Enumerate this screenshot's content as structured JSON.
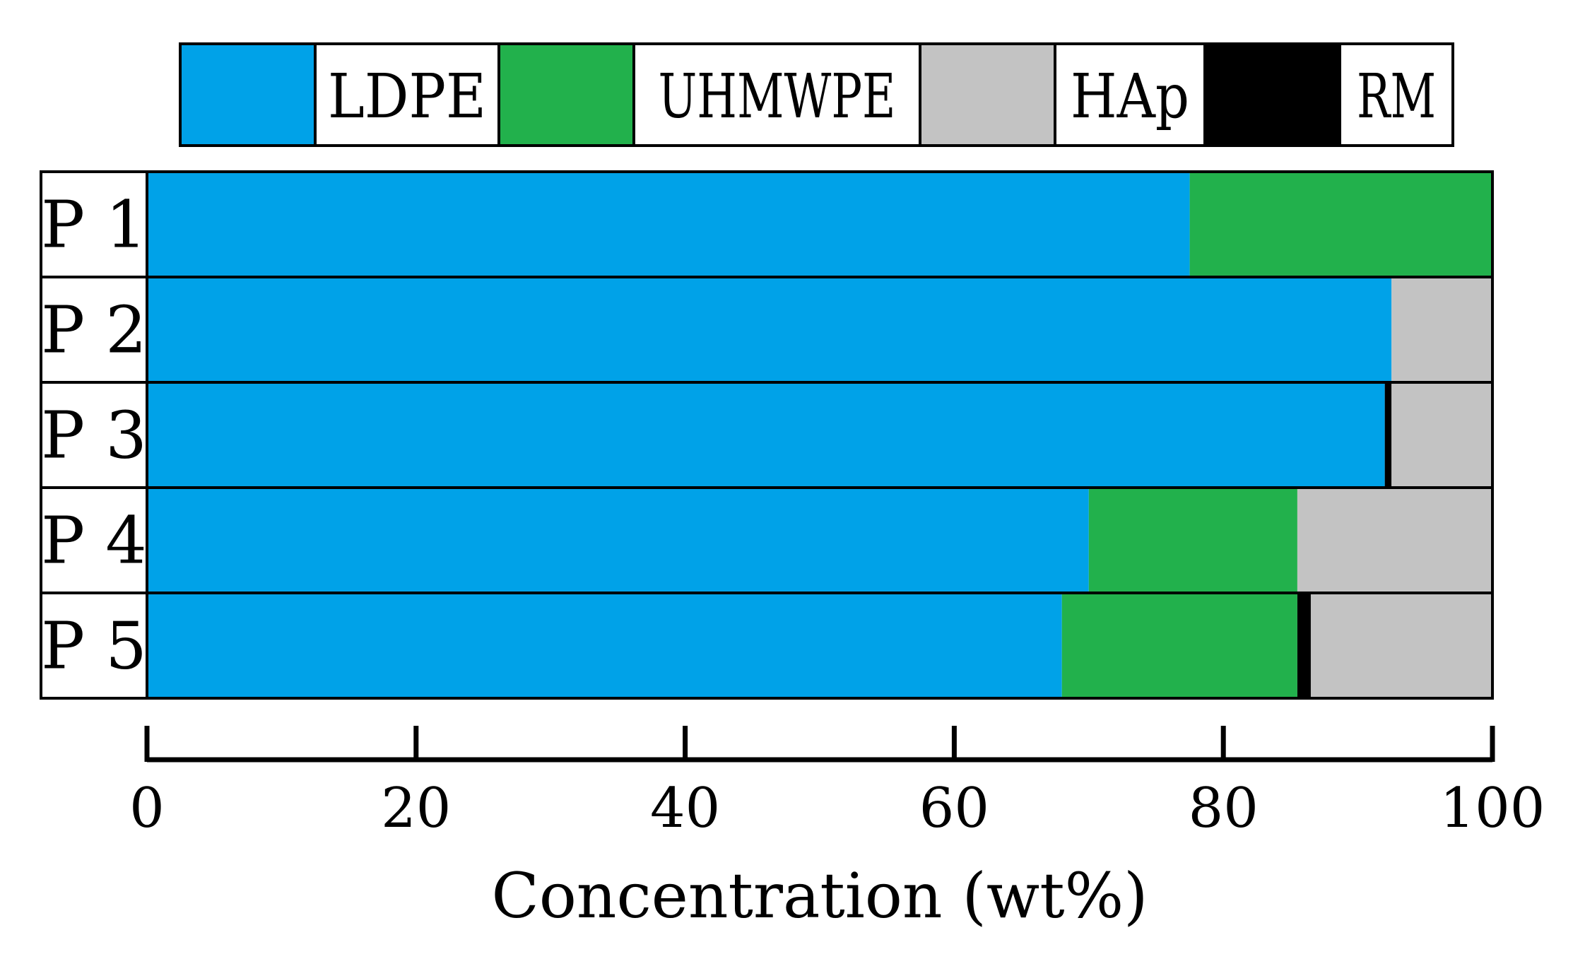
{
  "chart_data": {
    "type": "bar",
    "orientation": "horizontal",
    "stacked": true,
    "title": "",
    "xlabel": "Concentration (wt%)",
    "ylabel": "",
    "xlim": [
      0,
      100
    ],
    "xticks": [
      0,
      20,
      40,
      60,
      80,
      100
    ],
    "grid": false,
    "legend_position": "top",
    "categories": [
      "P 1",
      "P 2",
      "P 3",
      "P 4",
      "P 5"
    ],
    "series": [
      {
        "name": "LDPE",
        "color": "#00A2E8",
        "values": [
          77.5,
          92.5,
          92,
          70,
          68
        ]
      },
      {
        "name": "UHMWPE",
        "color": "#22B14C",
        "values": [
          22.5,
          0,
          0,
          15.5,
          17.5
        ]
      },
      {
        "name": "HAp",
        "color": "#C3C3C3",
        "values": [
          0,
          7.5,
          7.5,
          14.5,
          13.5
        ]
      },
      {
        "name": "RM",
        "color": "#000000",
        "values": [
          0,
          0,
          0.5,
          0,
          1
        ]
      }
    ],
    "stack_order": [
      "LDPE",
      "UHMWPE",
      "RM",
      "HAp"
    ]
  }
}
